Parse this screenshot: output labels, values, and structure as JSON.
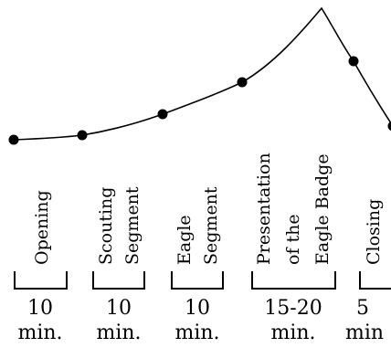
{
  "segments": [
    {
      "label_lines": [
        "Opening"
      ],
      "duration_lines": [
        "10",
        "min."
      ]
    },
    {
      "label_lines": [
        "Scouting",
        "Segment"
      ],
      "duration_lines": [
        "10",
        "min."
      ]
    },
    {
      "label_lines": [
        "Eagle",
        "Segment"
      ],
      "duration_lines": [
        "10",
        "min."
      ]
    },
    {
      "label_lines": [
        "Presentation",
        "of the",
        "Eagle Badge"
      ],
      "duration_lines": [
        "15-20",
        "min."
      ]
    },
    {
      "label_lines": [
        "Closing"
      ],
      "duration_lines": [
        "5",
        "min"
      ]
    }
  ],
  "curve": {
    "color": "#000000",
    "markers": 6,
    "peak_between": "Presentation of the Eagle Badge"
  }
}
